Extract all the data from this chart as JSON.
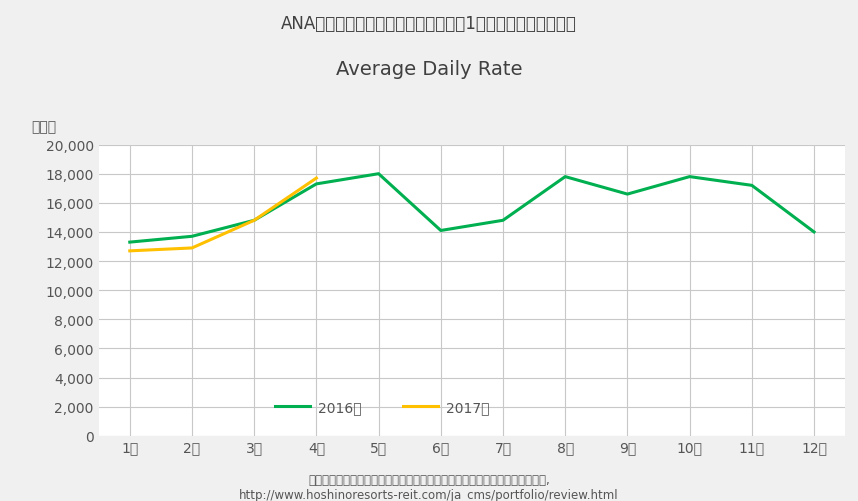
{
  "title_line1": "ANAクラウンプラザホテル金沢の客室1室当たりの販売単価：",
  "title_line2": "Average Daily Rate",
  "ylabel": "（円）",
  "months": [
    1,
    2,
    3,
    4,
    5,
    6,
    7,
    8,
    9,
    10,
    11,
    12
  ],
  "month_labels": [
    "1月",
    "2月",
    "3月",
    "4月",
    "5月",
    "6月",
    "7月",
    "8月",
    "9月",
    "10月",
    "11月",
    "12月"
  ],
  "data_2016": [
    13300,
    13700,
    14800,
    17300,
    18000,
    14100,
    14800,
    17800,
    16600,
    17800,
    17200,
    14000
  ],
  "data_2017": [
    12700,
    12900,
    14800,
    17700,
    null,
    null,
    null,
    null,
    null,
    null,
    null,
    null
  ],
  "color_2016": "#00B050",
  "color_2017": "#FFC000",
  "legend_2016": "2016年",
  "legend_2017": "2017年",
  "ylim": [
    0,
    20000
  ],
  "yticks": [
    0,
    2000,
    4000,
    6000,
    8000,
    10000,
    12000,
    14000,
    16000,
    18000,
    20000
  ],
  "background_color": "#F0F0F0",
  "plot_bg_color": "#FFFFFF",
  "grid_color": "#C8C8C8",
  "footnote1": "データ出所：星野リゾート・リート投資法人，「ポートフォリオ運営実績」,",
  "footnote2": "http://www.hoshinoresorts-reit.com/ja_cms/portfolio/review.html",
  "title_fontsize": 12,
  "title2_fontsize": 14,
  "axis_fontsize": 10,
  "legend_fontsize": 10,
  "footnote_fontsize": 8.5,
  "line_width": 2.2
}
